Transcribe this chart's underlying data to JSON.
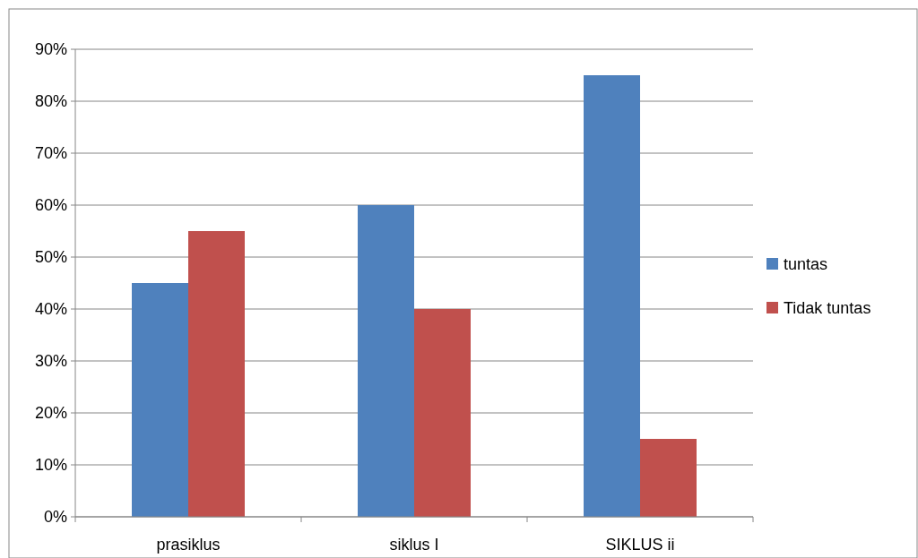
{
  "chart_data": {
    "type": "bar",
    "categories": [
      "prasiklus",
      "siklus I",
      "SIKLUS ii"
    ],
    "series": [
      {
        "name": "tuntas",
        "color": "#4f81bd",
        "values": [
          45,
          60,
          85
        ]
      },
      {
        "name": "Tidak tuntas",
        "color": "#c0504d",
        "values": [
          55,
          40,
          15
        ]
      }
    ],
    "ylim": [
      0,
      90
    ],
    "yticks": [
      {
        "value": 0,
        "label": "0%"
      },
      {
        "value": 10,
        "label": "10%"
      },
      {
        "value": 20,
        "label": "20%"
      },
      {
        "value": 30,
        "label": "30%"
      },
      {
        "value": 40,
        "label": "40%"
      },
      {
        "value": 50,
        "label": "50%"
      },
      {
        "value": 60,
        "label": "60%"
      },
      {
        "value": 70,
        "label": "70%"
      },
      {
        "value": 80,
        "label": "80%"
      },
      {
        "value": 90,
        "label": "90%"
      }
    ],
    "grid": "y",
    "legend": "right"
  }
}
